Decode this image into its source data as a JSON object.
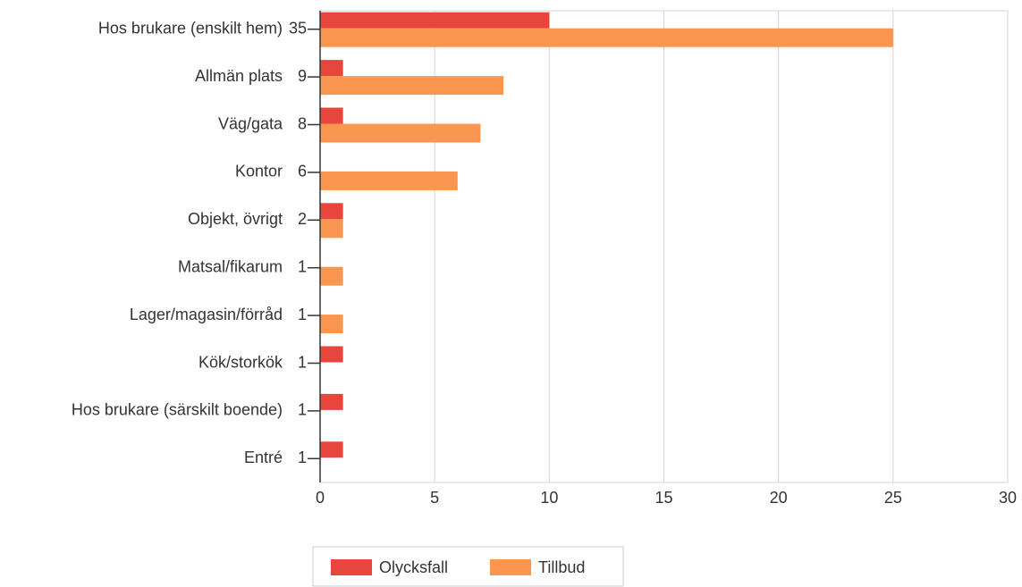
{
  "chart_data": {
    "type": "bar",
    "orientation": "horizontal",
    "categories": [
      "Hos brukare (enskilt hem)",
      "Allmän plats",
      "Väg/gata",
      "Kontor",
      "Objekt, övrigt",
      "Matsal/fikarum",
      "Lager/magasin/förråd",
      "Kök/storkök",
      "Hos brukare (särskilt boende)",
      "Entré"
    ],
    "totals": [
      35,
      9,
      8,
      6,
      2,
      1,
      1,
      1,
      1,
      1
    ],
    "series": [
      {
        "name": "Olycksfall",
        "color": "#e8453c",
        "values": [
          10,
          1,
          1,
          0,
          1,
          0,
          0,
          1,
          1,
          1
        ]
      },
      {
        "name": "Tillbud",
        "color": "#fa9650",
        "values": [
          25,
          8,
          7,
          6,
          1,
          1,
          1,
          0,
          0,
          0
        ]
      }
    ],
    "xlim": [
      0,
      30
    ],
    "xticks": [
      0,
      5,
      10,
      15,
      20,
      25,
      30
    ],
    "grid": true
  }
}
